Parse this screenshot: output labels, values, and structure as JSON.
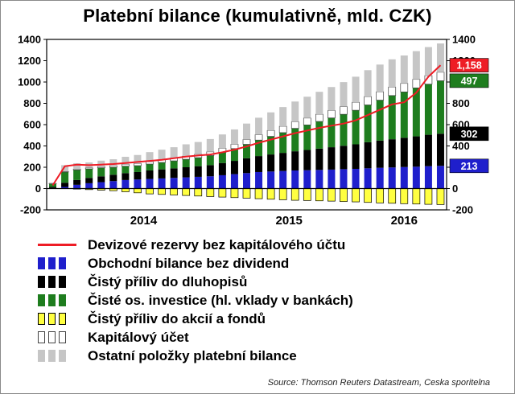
{
  "source": "Source: Thomson Reuters Datastream, Ceska sporitelna",
  "chart_data": {
    "type": "bar",
    "subtype": "stacked-bars-with-line",
    "title": "Platební bilance (kumulativně, mld. CZK)",
    "ylim": [
      -200,
      1400
    ],
    "ytick_step": 200,
    "grid": false,
    "legend_position": "bottom-left",
    "x_year_labels": [
      "2014",
      "2015",
      "2016"
    ],
    "categories": [
      "2013-11",
      "2013-12",
      "2014-01",
      "2014-02",
      "2014-03",
      "2014-04",
      "2014-05",
      "2014-06",
      "2014-07",
      "2014-08",
      "2014-09",
      "2014-10",
      "2014-11",
      "2014-12",
      "2015-01",
      "2015-02",
      "2015-03",
      "2015-04",
      "2015-05",
      "2015-06",
      "2015-07",
      "2015-08",
      "2015-09",
      "2015-10",
      "2015-11",
      "2015-12",
      "2016-01",
      "2016-02",
      "2016-03",
      "2016-04",
      "2016-05",
      "2016-06",
      "2016-07"
    ],
    "series": [
      {
        "name": "Obchodní bilance bez dividend",
        "color": "#1f1fcc",
        "stroke": "",
        "values": [
          5,
          15,
          35,
          50,
          60,
          70,
          80,
          85,
          90,
          95,
          100,
          105,
          110,
          115,
          125,
          135,
          145,
          155,
          160,
          165,
          170,
          172,
          175,
          178,
          182,
          185,
          190,
          195,
          198,
          202,
          205,
          210,
          213
        ]
      },
      {
        "name": "Čistý příliv do dluhopisů",
        "color": "#000000",
        "stroke": "",
        "values": [
          10,
          40,
          45,
          50,
          55,
          60,
          65,
          70,
          80,
          85,
          90,
          95,
          100,
          105,
          115,
          125,
          140,
          150,
          160,
          170,
          180,
          190,
          200,
          210,
          220,
          230,
          245,
          255,
          265,
          275,
          285,
          295,
          302
        ]
      },
      {
        "name": "Čisté os. investice (hl. vklady v bankách)",
        "color": "#1e7d1e",
        "stroke": "",
        "values": [
          30,
          100,
          95,
          85,
          80,
          70,
          65,
          60,
          60,
          65,
          70,
          75,
          80,
          90,
          100,
          115,
          130,
          150,
          170,
          190,
          215,
          235,
          255,
          275,
          295,
          320,
          350,
          380,
          410,
          430,
          455,
          475,
          497
        ]
      },
      {
        "name": "Čistý příliv do akcií a fondů",
        "color": "#ffff40",
        "stroke": "#000000",
        "values": [
          0,
          0,
          -5,
          -10,
          -15,
          -20,
          -30,
          -40,
          -50,
          -55,
          -60,
          -65,
          -70,
          -75,
          -80,
          -85,
          -90,
          -95,
          -100,
          -105,
          -110,
          -112,
          -115,
          -118,
          -122,
          -125,
          -130,
          -135,
          -138,
          -142,
          -145,
          -148,
          -150
        ]
      },
      {
        "name": "Kapitálový účet",
        "color": "#ffffff",
        "stroke": "#444444",
        "values": [
          2,
          5,
          8,
          10,
          12,
          15,
          18,
          20,
          22,
          25,
          28,
          30,
          32,
          35,
          38,
          40,
          45,
          50,
          55,
          60,
          62,
          65,
          68,
          70,
          72,
          75,
          78,
          79,
          80,
          80,
          80,
          80,
          80
        ]
      },
      {
        "name": "Ostatní položky platební bilance",
        "color": "#c6c6c6",
        "stroke": "",
        "values": [
          10,
          60,
          55,
          50,
          55,
          60,
          70,
          80,
          90,
          95,
          100,
          110,
          115,
          120,
          130,
          140,
          150,
          160,
          170,
          180,
          190,
          200,
          210,
          220,
          230,
          240,
          248,
          255,
          260,
          262,
          265,
          268,
          270
        ]
      }
    ],
    "line": {
      "name": "Devizové rezervy bez kapitálového účtu",
      "color": "#ee1c25",
      "values": [
        30,
        210,
        225,
        220,
        225,
        230,
        240,
        250,
        260,
        270,
        285,
        300,
        310,
        320,
        340,
        365,
        395,
        430,
        460,
        490,
        520,
        545,
        570,
        590,
        610,
        640,
        690,
        740,
        790,
        810,
        900,
        1050,
        1158
      ]
    },
    "right_value_boxes": [
      {
        "label": "1,158",
        "color": "#ee1c25",
        "at": 1158
      },
      {
        "label": "497",
        "color": "#1e7d1e",
        "at": 1012
      },
      {
        "label": "302",
        "color": "#000000",
        "at": 515
      },
      {
        "label": "213",
        "color": "#1f1fcc",
        "at": 213
      }
    ]
  }
}
